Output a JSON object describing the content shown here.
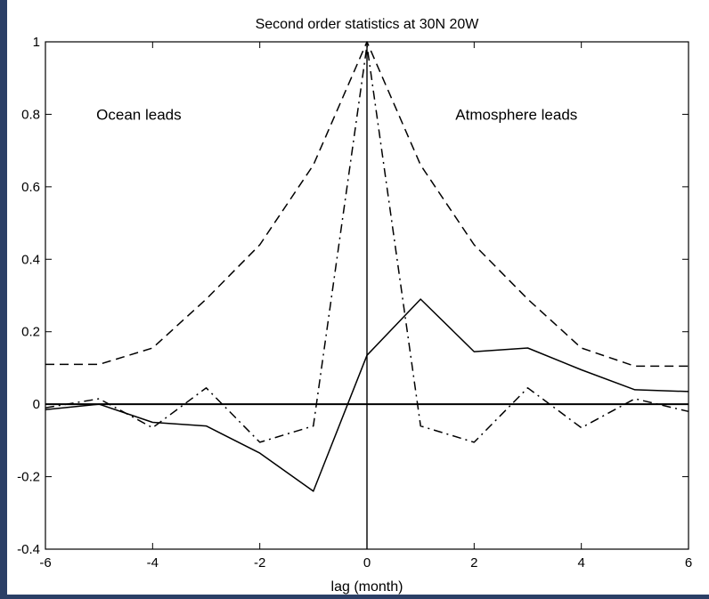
{
  "colors": {
    "frame": "#2b3f66",
    "background": "#ffffff",
    "ink": "#000000"
  },
  "chart_data": {
    "type": "line",
    "title": "Second order statistics at 30N 20W",
    "xlabel": "lag (month)",
    "ylabel": "",
    "xlim": [
      -6,
      6
    ],
    "ylim": [
      -0.4,
      1
    ],
    "xticks": [
      -6,
      -4,
      -2,
      0,
      2,
      4,
      6
    ],
    "xtick_labels": [
      "-6",
      "-4",
      "-2",
      "0",
      "2",
      "4",
      "6"
    ],
    "yticks": [
      -0.4,
      -0.2,
      0,
      0.2,
      0.4,
      0.6,
      0.8,
      1
    ],
    "ytick_labels": [
      "-0.4",
      "-0.2",
      "0",
      "0.2",
      "0.4",
      "0.6",
      "0.8",
      "1"
    ],
    "grid": false,
    "legend": "none",
    "annotations": [
      {
        "text": "Ocean leads",
        "x": -5.05,
        "y": 0.8
      },
      {
        "text": "Atmosphere leads",
        "x": 1.65,
        "y": 0.8
      }
    ],
    "reference_lines": {
      "horizontal_y": 0,
      "vertical_x": 0
    },
    "series": [
      {
        "style": "dashed",
        "x": [
          -6,
          -5,
          -4,
          -3,
          -2,
          -1,
          0,
          1,
          2,
          3,
          4,
          5,
          6
        ],
        "values": [
          0.11,
          0.11,
          0.155,
          0.29,
          0.44,
          0.66,
          1.0,
          0.66,
          0.44,
          0.29,
          0.155,
          0.105,
          0.105
        ]
      },
      {
        "style": "dashdot",
        "x": [
          -6,
          -5,
          -4,
          -3,
          -2,
          -1,
          0,
          1,
          2,
          3,
          4,
          5,
          6
        ],
        "values": [
          -0.01,
          0.015,
          -0.065,
          0.045,
          -0.105,
          -0.06,
          0.99,
          -0.06,
          -0.105,
          0.045,
          -0.065,
          0.015,
          -0.02
        ]
      },
      {
        "style": "solid",
        "x": [
          -6,
          -5,
          -4,
          -3,
          -2,
          -1,
          0,
          1,
          2,
          3,
          4,
          5,
          6
        ],
        "values": [
          -0.015,
          0.0,
          -0.05,
          -0.06,
          -0.135,
          -0.24,
          0.135,
          0.29,
          0.145,
          0.155,
          0.095,
          0.04,
          0.035
        ]
      }
    ]
  }
}
